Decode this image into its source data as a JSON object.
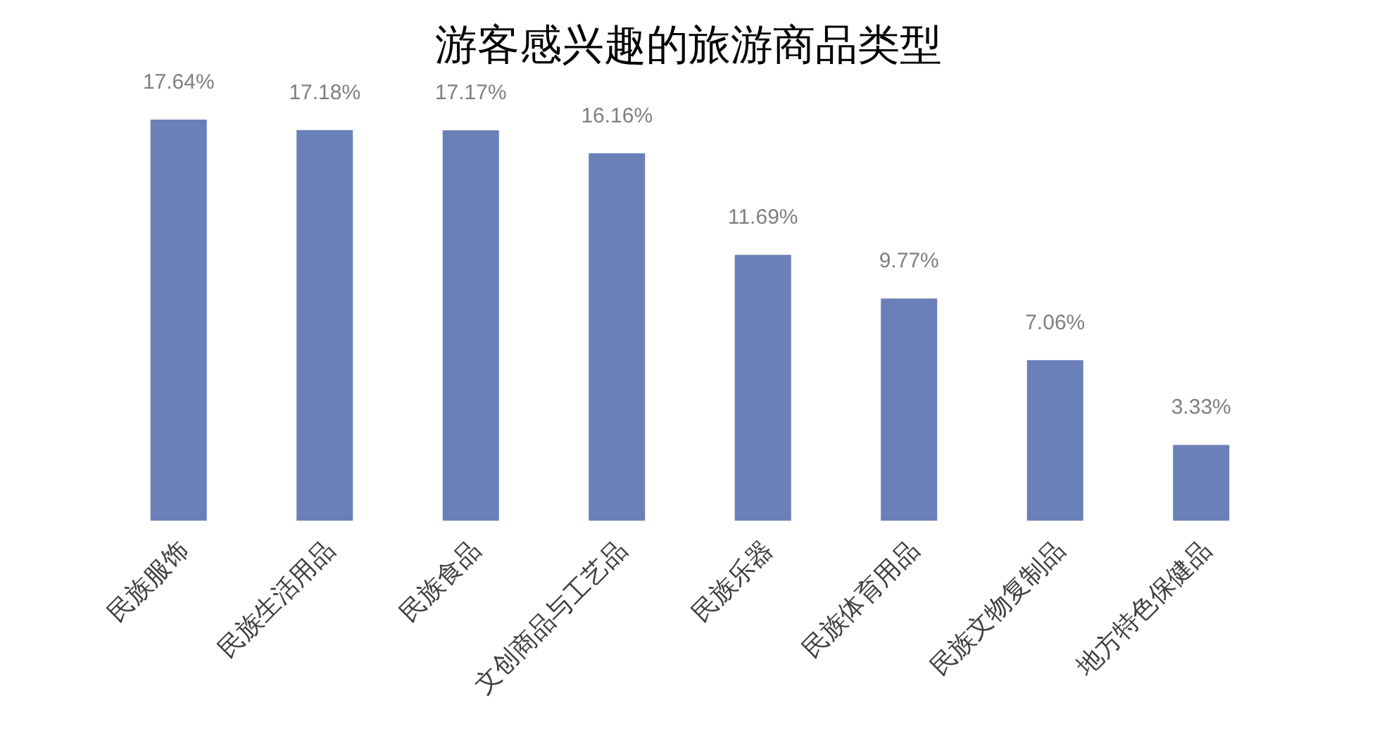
{
  "chart_data": {
    "type": "bar",
    "title": "游客感兴趣的旅游商品类型",
    "categories": [
      "民族服饰",
      "民族生活用品",
      "民族食品",
      "文创商品与工艺品",
      "民族乐器",
      "民族体育用品",
      "民族文物复制品",
      "地方特色保健品"
    ],
    "values": [
      17.64,
      17.18,
      17.17,
      16.16,
      11.69,
      9.77,
      7.06,
      3.33
    ],
    "value_labels": [
      "17.64%",
      "17.18%",
      "17.17%",
      "16.16%",
      "11.69%",
      "9.77%",
      "7.06%",
      "3.33%"
    ],
    "color": "#6b7fb8"
  }
}
